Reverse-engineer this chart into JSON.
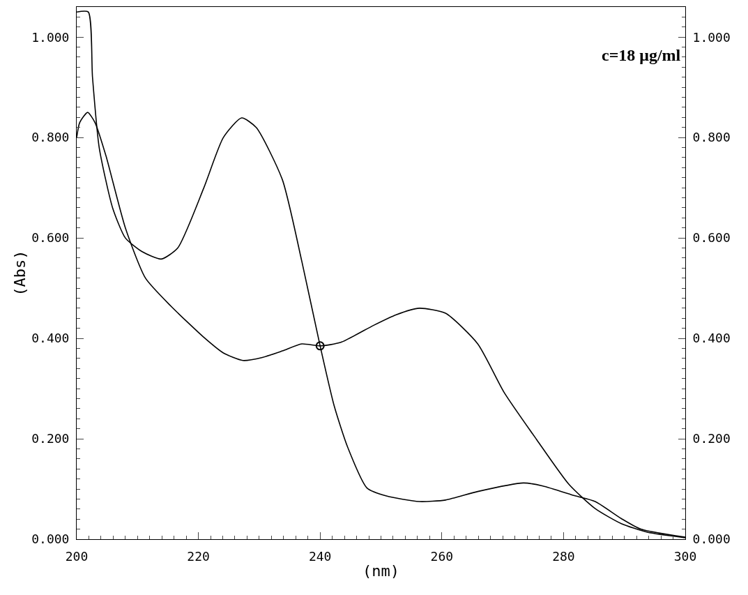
{
  "chart_data": {
    "type": "line",
    "xlabel": "(nm)",
    "ylabel": "(Abs)",
    "annotations": [
      "c=18 μg/ml"
    ],
    "xlim": [
      200,
      300
    ],
    "xticks": [
      200,
      220,
      240,
      260,
      280,
      300
    ],
    "ylim": [
      0,
      1.06
    ],
    "yticks": [
      {
        "value": 0,
        "label": "0.000"
      },
      {
        "value": 0.2,
        "label": "0.200"
      },
      {
        "value": 0.4,
        "label": "0.400"
      },
      {
        "value": 0.6,
        "label": "0.600"
      },
      {
        "value": 0.8,
        "label": "0.800"
      },
      {
        "value": 1,
        "label": "1.000"
      }
    ],
    "y2lim": [
      0,
      1.06
    ],
    "y2ticks": [
      {
        "value": 0,
        "label": "0.000"
      },
      {
        "value": 0.2,
        "label": "0.200"
      },
      {
        "value": 0.4,
        "label": "0.400"
      },
      {
        "value": 0.6,
        "label": "0.600"
      },
      {
        "value": 0.8,
        "label": "0.800"
      },
      {
        "value": 1,
        "label": "1.000"
      }
    ],
    "line_style": "solid",
    "series": [
      {
        "color": "#000000",
        "x": [
          200,
          201.9,
          202.6,
          203.7,
          205.9,
          208,
          210.7,
          213.9,
          216.6,
          220.9,
          224.1,
          227.1,
          229.5,
          233.8,
          237,
          240,
          242.3,
          244.5,
          247.7,
          250.9,
          256.3,
          260.6,
          265.9,
          273.4,
          276.6,
          282,
          285.2,
          289.5,
          292.7,
          300
        ],
        "values": [
          1.05,
          1.05,
          0.92,
          0.78,
          0.66,
          0.6,
          0.573,
          0.558,
          0.58,
          0.7,
          0.8,
          0.839,
          0.82,
          0.716,
          0.553,
          0.385,
          0.266,
          0.184,
          0.102,
          0.086,
          0.075,
          0.078,
          0.095,
          0.112,
          0.106,
          0.086,
          0.075,
          0.041,
          0.02,
          0.004
        ]
      },
      {
        "color": "#000000",
        "x": [
          200,
          200.5,
          201.8,
          203,
          204.8,
          208,
          211.3,
          215.5,
          220.9,
          224.1,
          227.3,
          230.5,
          233.8,
          237,
          240,
          243.4,
          248.8,
          252.5,
          256.3,
          260.6,
          265.9,
          270.2,
          275.6,
          280.9,
          285.2,
          289.5,
          293.8,
          300
        ],
        "values": [
          0.8,
          0.83,
          0.85,
          0.83,
          0.764,
          0.62,
          0.52,
          0.464,
          0.402,
          0.371,
          0.356,
          0.362,
          0.375,
          0.389,
          0.385,
          0.392,
          0.426,
          0.447,
          0.46,
          0.45,
          0.389,
          0.293,
          0.198,
          0.109,
          0.061,
          0.031,
          0.014,
          0.003
        ]
      },
      {
        "type": "scatter",
        "marker": "circle",
        "color": "#000000",
        "x": [
          240
        ],
        "values": [
          0.385
        ]
      }
    ]
  }
}
